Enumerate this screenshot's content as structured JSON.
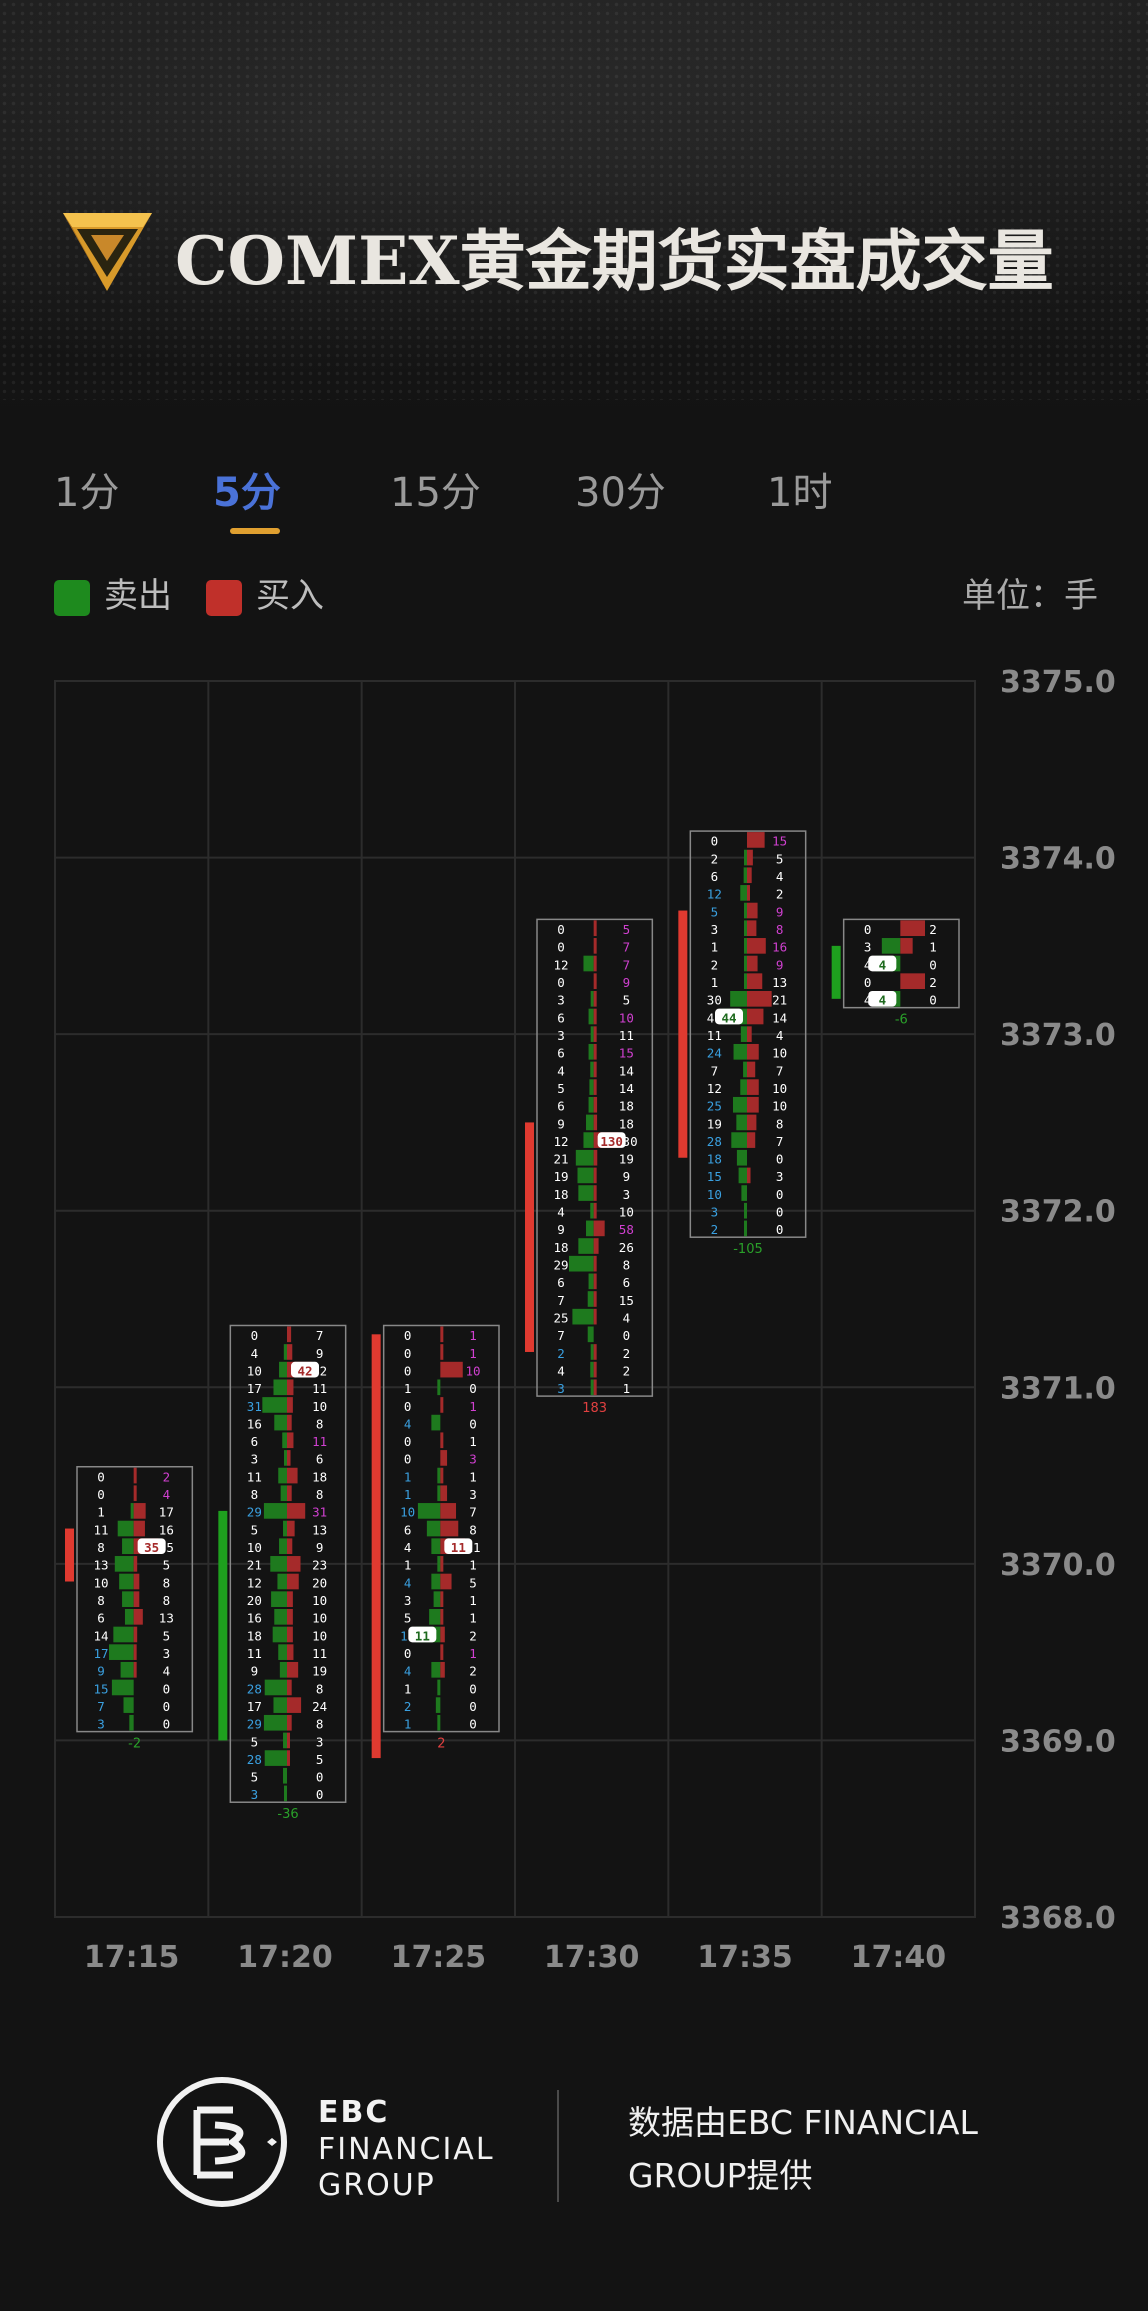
{
  "header": {
    "title": "COMEX黄金期货实盘成交量",
    "logo_icon": "diamond-shield-icon"
  },
  "tabs": [
    {
      "label": "1分",
      "active": false
    },
    {
      "label": "5分",
      "active": true
    },
    {
      "label": "15分",
      "active": false
    },
    {
      "label": "30分",
      "active": false
    },
    {
      "label": "1时",
      "active": false
    }
  ],
  "legend": {
    "sell_label": "卖出",
    "buy_label": "买入",
    "sell_color": "#1e8a1e",
    "buy_color": "#c0302a",
    "unit_label": "单位：手"
  },
  "footer": {
    "brand_line1": "EBC",
    "brand_line2": "FINANCIAL",
    "brand_line3": "GROUP",
    "credit_line1": "数据由EBC FINANCIAL",
    "credit_line2": "GROUP提供",
    "logo_icon": "ebc-logo-icon"
  },
  "chart_data": {
    "type": "footprint",
    "ylim": [
      3368.0,
      3375.0
    ],
    "y_ticks": [
      "3375.0",
      "3374.0",
      "3373.0",
      "3372.0",
      "3371.0",
      "3370.0",
      "3369.0",
      "3368.0"
    ],
    "x_ticks": [
      "17:15",
      "17:20",
      "17:25",
      "17:30",
      "17:35",
      "17:40"
    ],
    "tick_size": 0.1,
    "colors": {
      "sell": "#1e7a1e",
      "buy": "#a52a2a",
      "up": "#e03a30",
      "down": "#1ea01e",
      "delta_neg": "#2aa02a",
      "delta_pos": "#e04040",
      "sell_highlight": "#3aa0e0",
      "buy_highlight": "#d040d0"
    },
    "candles": [
      {
        "time": "17:15",
        "open": 3370.2,
        "close": 3369.9,
        "top": 3370.5,
        "direction": "up",
        "delta": "-2",
        "levels": [
          [
            0,
            2
          ],
          [
            0,
            4
          ],
          [
            1,
            17
          ],
          [
            11,
            16
          ],
          [
            8,
            35
          ],
          [
            13,
            5
          ],
          [
            10,
            8
          ],
          [
            8,
            8
          ],
          [
            6,
            13
          ],
          [
            14,
            5
          ],
          [
            17,
            3
          ],
          [
            9,
            4
          ],
          [
            15,
            0
          ],
          [
            7,
            0
          ],
          [
            3,
            0
          ]
        ],
        "sell_hl": [
          10,
          11,
          12,
          13,
          14
        ],
        "buy_hl": [
          0,
          1
        ],
        "box": [
          4,
          "buy"
        ]
      },
      {
        "time": "17:20",
        "open": 3369.0,
        "close": 3370.3,
        "top": 3371.3,
        "direction": "down",
        "delta": "-36",
        "levels": [
          [
            0,
            7
          ],
          [
            4,
            9
          ],
          [
            10,
            42
          ],
          [
            17,
            11
          ],
          [
            31,
            10
          ],
          [
            16,
            8
          ],
          [
            6,
            11
          ],
          [
            3,
            6
          ],
          [
            11,
            18
          ],
          [
            8,
            8
          ],
          [
            29,
            31
          ],
          [
            5,
            13
          ],
          [
            10,
            9
          ],
          [
            21,
            23
          ],
          [
            12,
            20
          ],
          [
            20,
            10
          ],
          [
            16,
            10
          ],
          [
            18,
            10
          ],
          [
            11,
            11
          ],
          [
            9,
            19
          ],
          [
            28,
            8
          ],
          [
            17,
            24
          ],
          [
            29,
            8
          ],
          [
            5,
            3
          ],
          [
            28,
            5
          ],
          [
            5,
            0
          ],
          [
            3,
            0
          ]
        ],
        "sell_hl": [
          4,
          10,
          20,
          22,
          24,
          26
        ],
        "buy_hl": [
          6,
          10
        ],
        "box": [
          2,
          "buy"
        ]
      },
      {
        "time": "17:25",
        "open": 3368.9,
        "close": 3371.3,
        "top": 3371.3,
        "direction": "up",
        "delta": "2",
        "levels": [
          [
            0,
            1
          ],
          [
            0,
            1
          ],
          [
            0,
            10
          ],
          [
            1,
            0
          ],
          [
            0,
            1
          ],
          [
            4,
            0
          ],
          [
            0,
            1
          ],
          [
            0,
            3
          ],
          [
            1,
            1
          ],
          [
            1,
            3
          ],
          [
            10,
            7
          ],
          [
            6,
            8
          ],
          [
            4,
            11
          ],
          [
            1,
            1
          ],
          [
            4,
            5
          ],
          [
            3,
            1
          ],
          [
            5,
            1
          ],
          [
            11,
            2
          ],
          [
            0,
            1
          ],
          [
            4,
            2
          ],
          [
            1,
            0
          ],
          [
            2,
            0
          ],
          [
            1,
            0
          ]
        ],
        "sell_hl": [
          5,
          8,
          9,
          10,
          14,
          17,
          19,
          21,
          22
        ],
        "buy_hl": [
          0,
          1,
          2,
          4,
          7,
          18
        ],
        "box": [
          12,
          "buy",
          17,
          "sell"
        ]
      },
      {
        "time": "17:30",
        "open": 3371.2,
        "close": 3372.5,
        "top": 3373.6,
        "direction": "up",
        "delta": "183",
        "levels": [
          [
            0,
            5
          ],
          [
            0,
            7
          ],
          [
            12,
            7
          ],
          [
            0,
            9
          ],
          [
            3,
            5
          ],
          [
            6,
            10
          ],
          [
            3,
            11
          ],
          [
            6,
            15
          ],
          [
            4,
            14
          ],
          [
            5,
            14
          ],
          [
            6,
            18
          ],
          [
            9,
            18
          ],
          [
            12,
            130
          ],
          [
            21,
            19
          ],
          [
            19,
            9
          ],
          [
            18,
            3
          ],
          [
            4,
            10
          ],
          [
            9,
            58
          ],
          [
            18,
            26
          ],
          [
            29,
            8
          ],
          [
            6,
            6
          ],
          [
            7,
            15
          ],
          [
            25,
            4
          ],
          [
            7,
            0
          ],
          [
            2,
            2
          ],
          [
            4,
            2
          ],
          [
            3,
            1
          ]
        ],
        "sell_hl": [
          24,
          26
        ],
        "buy_hl": [
          0,
          1,
          2,
          3,
          5,
          7,
          17
        ],
        "box": [
          12,
          "buy"
        ]
      },
      {
        "time": "17:35",
        "open": 3373.7,
        "close": 3372.3,
        "top": 3374.1,
        "direction": "up",
        "delta": "-105",
        "levels": [
          [
            0,
            15
          ],
          [
            2,
            5
          ],
          [
            6,
            4
          ],
          [
            12,
            2
          ],
          [
            5,
            9
          ],
          [
            3,
            8
          ],
          [
            1,
            16
          ],
          [
            2,
            9
          ],
          [
            1,
            13
          ],
          [
            30,
            21
          ],
          [
            44,
            14
          ],
          [
            11,
            4
          ],
          [
            24,
            10
          ],
          [
            7,
            7
          ],
          [
            12,
            10
          ],
          [
            25,
            10
          ],
          [
            19,
            8
          ],
          [
            28,
            7
          ],
          [
            18,
            0
          ],
          [
            15,
            3
          ],
          [
            10,
            0
          ],
          [
            3,
            0
          ],
          [
            2,
            0
          ]
        ],
        "sell_hl": [
          3,
          4,
          12,
          15,
          17,
          18,
          19,
          20,
          21,
          22
        ],
        "buy_hl": [
          0,
          4,
          5,
          6,
          7
        ],
        "box": [
          10,
          "sell"
        ]
      },
      {
        "time": "17:40",
        "open": 3373.2,
        "close": 3373.5,
        "top": 3373.6,
        "direction": "down",
        "delta": "-6",
        "levels": [
          [
            0,
            2
          ],
          [
            3,
            1
          ],
          [
            4,
            0
          ],
          [
            0,
            2
          ],
          [
            4,
            0
          ]
        ],
        "sell_hl": [],
        "buy_hl": [],
        "box": [
          2,
          "sell",
          4,
          "sell"
        ]
      }
    ]
  }
}
